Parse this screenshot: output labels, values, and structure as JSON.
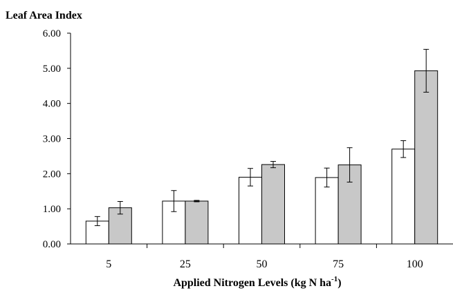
{
  "chart_data": {
    "type": "bar",
    "ylabel": "Leaf Area Index",
    "xlabel_main": "Applied Nitrogen Levels (kg N ha",
    "xlabel_sup": "-1",
    "xlabel_close": ")",
    "categories": [
      "5",
      "25",
      "50",
      "75",
      "100"
    ],
    "series": [
      {
        "fill": "#ffffff",
        "values": [
          0.65,
          1.22,
          1.9,
          1.89,
          2.7
        ],
        "errors": [
          0.13,
          0.3,
          0.25,
          0.27,
          0.24
        ]
      },
      {
        "fill": "#c8c8c8",
        "values": [
          1.03,
          1.22,
          2.26,
          2.25,
          4.93
        ],
        "errors": [
          0.18,
          0.02,
          0.09,
          0.49,
          0.61
        ]
      }
    ],
    "ylim": [
      0,
      6
    ],
    "yticks": [
      "0.00",
      "1.00",
      "2.00",
      "3.00",
      "4.00",
      "5.00",
      "6.00"
    ],
    "grid": false,
    "legend": "none"
  }
}
